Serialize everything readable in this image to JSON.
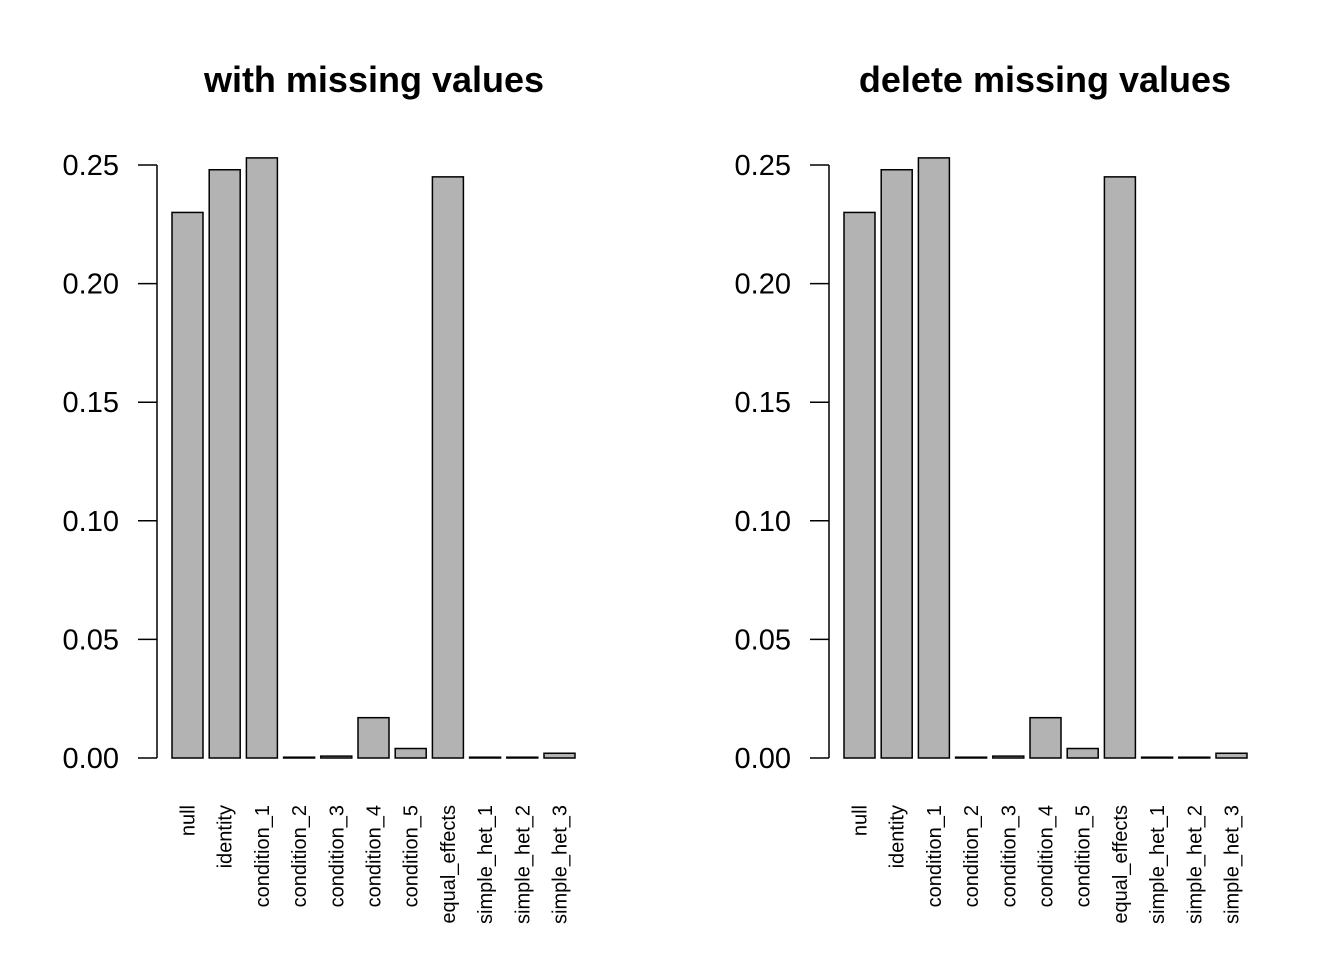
{
  "chart_data": [
    {
      "type": "bar",
      "title": "with missing values",
      "xlabel": "",
      "ylabel": "",
      "ylim": [
        0,
        0.25
      ],
      "yticks": [
        "0.00",
        "0.05",
        "0.10",
        "0.15",
        "0.20",
        "0.25"
      ],
      "grid": false,
      "bar_color": "#b3b3b3",
      "categories": [
        "null",
        "identity",
        "condition_1",
        "condition_2",
        "condition_3",
        "condition_4",
        "condition_5",
        "equal_effects",
        "simple_het_1",
        "simple_het_2",
        "simple_het_3"
      ],
      "values": [
        0.23,
        0.248,
        0.253,
        0.0001,
        0.0008,
        0.017,
        0.004,
        0.245,
        0.0001,
        0.0001,
        0.002
      ]
    },
    {
      "type": "bar",
      "title": "delete missing values",
      "xlabel": "",
      "ylabel": "",
      "ylim": [
        0,
        0.25
      ],
      "yticks": [
        "0.00",
        "0.05",
        "0.10",
        "0.15",
        "0.20",
        "0.25"
      ],
      "grid": false,
      "bar_color": "#b3b3b3",
      "categories": [
        "null",
        "identity",
        "condition_1",
        "condition_2",
        "condition_3",
        "condition_4",
        "condition_5",
        "equal_effects",
        "simple_het_1",
        "simple_het_2",
        "simple_het_3"
      ],
      "values": [
        0.23,
        0.248,
        0.253,
        0.0001,
        0.0008,
        0.017,
        0.004,
        0.245,
        0.0001,
        0.0001,
        0.002
      ]
    }
  ]
}
